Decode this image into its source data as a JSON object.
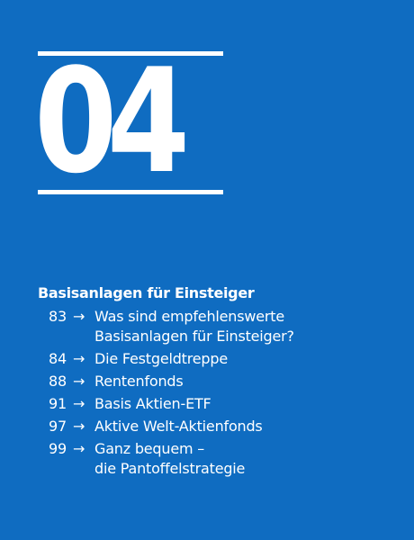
{
  "chapter": {
    "number": "04",
    "title": "Basisanlagen für Einsteiger"
  },
  "arrow_glyph": "→",
  "toc": [
    {
      "page": "83",
      "lines": [
        "Was sind empfehlenswerte",
        "Basisanlagen für Einsteiger?"
      ]
    },
    {
      "page": "84",
      "lines": [
        "Die Festgeldtreppe"
      ]
    },
    {
      "page": "88",
      "lines": [
        "Rentenfonds"
      ]
    },
    {
      "page": "91",
      "lines": [
        "Basis Aktien-ETF"
      ]
    },
    {
      "page": "97",
      "lines": [
        "Aktive Welt-Aktienfonds"
      ]
    },
    {
      "page": "99",
      "lines": [
        "Ganz bequem –",
        "die Pantoffelstrategie"
      ]
    }
  ],
  "colors": {
    "background": "#0f6cc1",
    "text": "#ffffff"
  }
}
